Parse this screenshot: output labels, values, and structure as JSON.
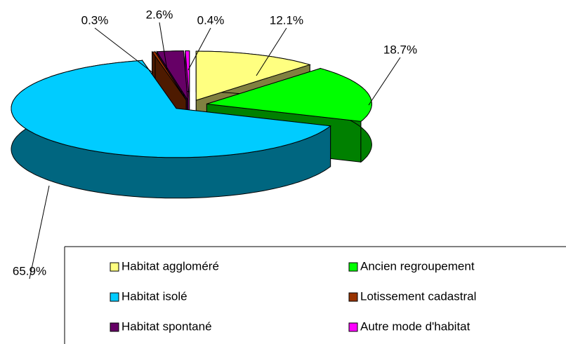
{
  "chart_data": {
    "type": "pie3d",
    "categories": [
      "Habitat aggloméré",
      "Ancien regroupement",
      "Habitat isolé",
      "Lotissement cadastral",
      "Habitat spontané",
      "Autre mode d'habitat"
    ],
    "values": [
      12.1,
      18.7,
      65.9,
      0.3,
      2.6,
      0.4
    ],
    "value_labels": [
      "12.1%",
      "18.7%",
      "65.9%",
      "0.3%",
      "2.6%",
      "0.4%"
    ],
    "colors": [
      "#ffff80",
      "#00ff00",
      "#00ccff",
      "#993300",
      "#660066",
      "#ff00ff"
    ],
    "legend": "bottom-right"
  }
}
